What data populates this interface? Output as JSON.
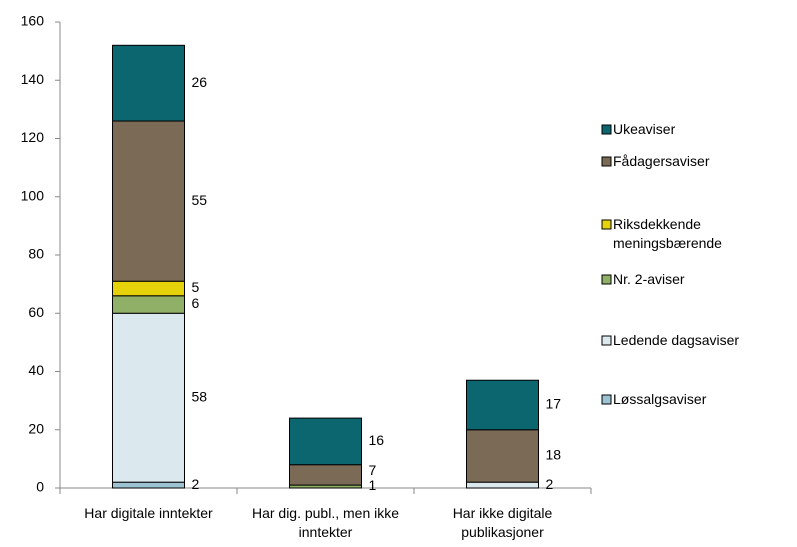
{
  "chart_data": {
    "type": "stacked_bar",
    "categories": [
      "Har digitale inntekter",
      "Har dig. publ., men ikke inntekter",
      "Har ikke digitale publikasjoner"
    ],
    "series": [
      {
        "name": "Løssalgsaviser",
        "color": "#9dc3d3",
        "values": [
          2,
          null,
          null
        ]
      },
      {
        "name": "Ledende dagsaviser",
        "color": "#dbe9ee",
        "values": [
          58,
          null,
          2
        ]
      },
      {
        "name": "Nr. 2-aviser",
        "color": "#8fb066",
        "values": [
          6,
          1,
          null
        ]
      },
      {
        "name": "Riksdekkende meningsbærende",
        "color": "#e6d20a",
        "values": [
          5,
          null,
          null
        ]
      },
      {
        "name": "Fådagersaviser",
        "color": "#7b6a56",
        "values": [
          55,
          7,
          18
        ]
      },
      {
        "name": "Ukeaviser",
        "color": "#0b6670",
        "values": [
          26,
          16,
          17
        ]
      }
    ],
    "ylim": [
      0,
      160
    ],
    "yticks": [
      0,
      20,
      40,
      60,
      80,
      100,
      120,
      140,
      160
    ],
    "grid": false,
    "legend": "right"
  }
}
